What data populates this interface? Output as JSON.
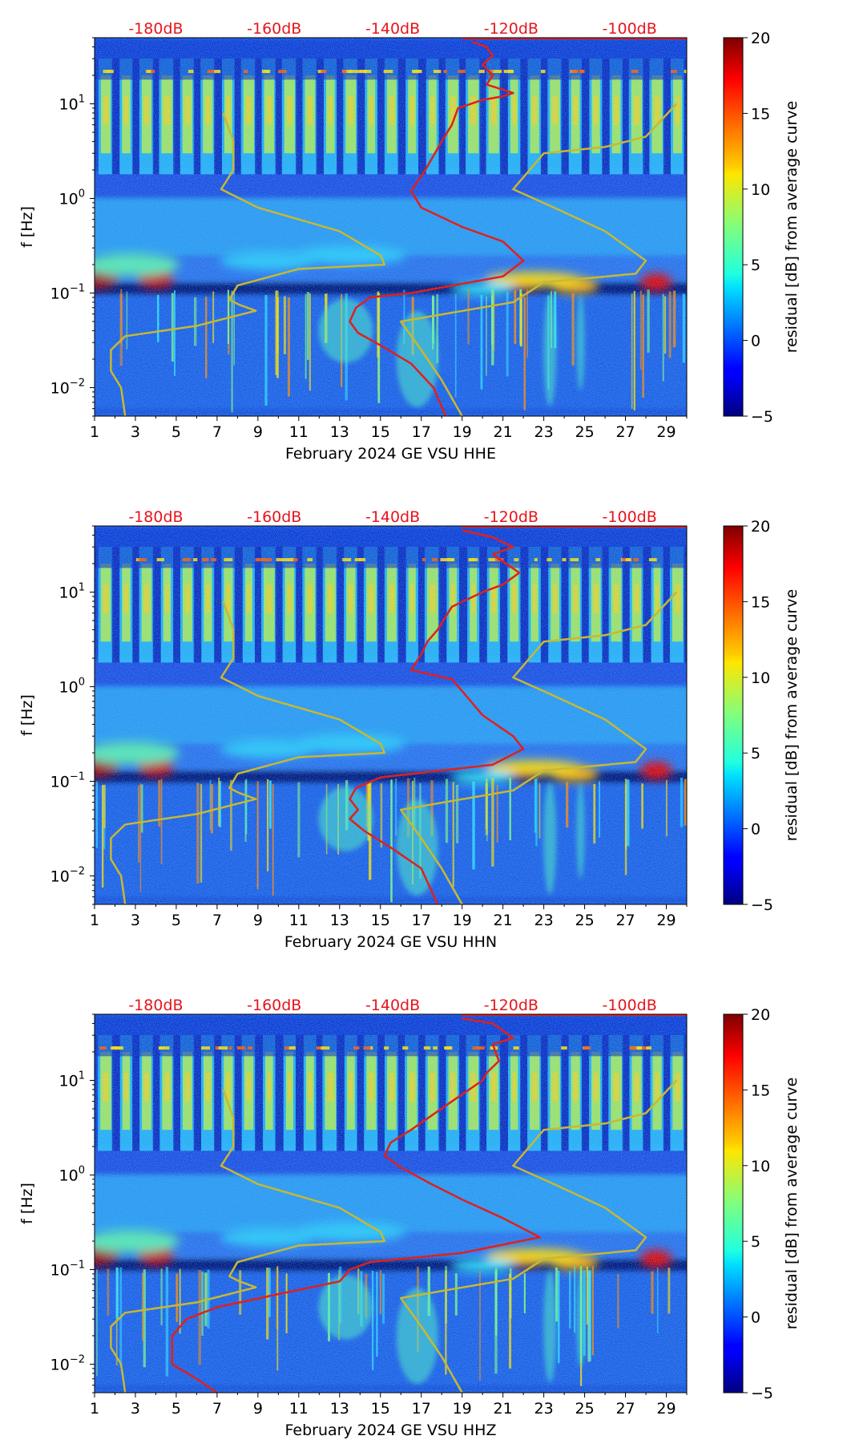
{
  "colors": {
    "db_label": "#e8141c",
    "red_curve": "#e0201c",
    "yellow_curve": "#c8b832",
    "axis": "#000000"
  },
  "chart_data": [
    {
      "type": "heatmap",
      "panel": "HHE",
      "xlabel": "February 2024 GE VSU  HHE",
      "ylabel": "f [Hz]",
      "x_ticks": [
        "1",
        "3",
        "5",
        "7",
        "9",
        "11",
        "13",
        "15",
        "17",
        "19",
        "21",
        "23",
        "25",
        "27",
        "29"
      ],
      "xlim": [
        1,
        30
      ],
      "ylim_hz": [
        0.005,
        50
      ],
      "y_ticks": [
        "10^-2",
        "10^-1",
        "10^0",
        "10^1"
      ],
      "y_tick_base": "10",
      "y_tick_exponents": [
        "−2",
        "−1",
        "0",
        "1"
      ],
      "top_labels": [
        "-180dB",
        "-160dB",
        "-140dB",
        "-120dB",
        "-100dB"
      ],
      "top_label_day_positions": [
        4,
        9.8,
        15.6,
        21.4,
        27.2
      ],
      "colorbar": {
        "label": "residual [dB] from average curve",
        "min": -5,
        "max": 20,
        "ticks": [
          "20",
          "15",
          "10",
          "5",
          "0",
          "−5"
        ]
      },
      "red_curve": [
        [
          19.5,
          45
        ],
        [
          20.2,
          40
        ],
        [
          20.5,
          32
        ],
        [
          20,
          26
        ],
        [
          20.5,
          20
        ],
        [
          20.2,
          16
        ],
        [
          21.5,
          13
        ],
        [
          21,
          12
        ],
        [
          20,
          11
        ],
        [
          18.8,
          9
        ],
        [
          18.5,
          6
        ],
        [
          18,
          4
        ],
        [
          17.2,
          2
        ],
        [
          16.5,
          1.2
        ],
        [
          17,
          0.8
        ],
        [
          19,
          0.5
        ],
        [
          21,
          0.35
        ],
        [
          22,
          0.22
        ],
        [
          21,
          0.15
        ],
        [
          16.5,
          0.1
        ],
        [
          14.5,
          0.09
        ],
        [
          13.8,
          0.07
        ],
        [
          13.5,
          0.05
        ],
        [
          13.9,
          0.038
        ],
        [
          15,
          0.028
        ],
        [
          16.5,
          0.018
        ],
        [
          17.6,
          0.01
        ],
        [
          18.2,
          0.005
        ]
      ],
      "yellow_curves": [
        [
          [
            7.3,
            8
          ],
          [
            7.8,
            4
          ],
          [
            7.8,
            2
          ],
          [
            7.2,
            1.25
          ],
          [
            9,
            0.8
          ],
          [
            13,
            0.45
          ],
          [
            15,
            0.25
          ],
          [
            15.2,
            0.2
          ],
          [
            11,
            0.18
          ],
          [
            8,
            0.12
          ],
          [
            7.6,
            0.085
          ],
          [
            8.1,
            0.075
          ],
          [
            8.9,
            0.065
          ],
          [
            6,
            0.045
          ],
          [
            2.5,
            0.035
          ],
          [
            1.8,
            0.025
          ],
          [
            1.8,
            0.015
          ],
          [
            2.3,
            0.01
          ],
          [
            2.5,
            0.005
          ]
        ],
        [
          [
            29.5,
            10
          ],
          [
            28,
            4.5
          ],
          [
            26,
            3.5
          ],
          [
            23,
            3
          ],
          [
            21.5,
            1.25
          ],
          [
            23.5,
            0.8
          ],
          [
            26,
            0.45
          ],
          [
            28,
            0.22
          ],
          [
            27.5,
            0.16
          ],
          [
            23,
            0.13
          ],
          [
            21.5,
            0.08
          ],
          [
            16,
            0.05
          ],
          [
            17,
            0.025
          ],
          [
            18,
            0.012
          ],
          [
            19,
            0.005
          ]
        ]
      ]
    },
    {
      "type": "heatmap",
      "panel": "HHN",
      "xlabel": "February 2024 GE VSU  HHN",
      "ylabel": "f [Hz]",
      "x_ticks": [
        "1",
        "3",
        "5",
        "7",
        "9",
        "11",
        "13",
        "15",
        "17",
        "19",
        "21",
        "23",
        "25",
        "27",
        "29"
      ],
      "xlim": [
        1,
        30
      ],
      "ylim_hz": [
        0.005,
        50
      ],
      "y_ticks": [
        "10^-2",
        "10^-1",
        "10^0",
        "10^1"
      ],
      "y_tick_base": "10",
      "y_tick_exponents": [
        "−2",
        "−1",
        "0",
        "1"
      ],
      "top_labels": [
        "-180dB",
        "-160dB",
        "-140dB",
        "-120dB",
        "-100dB"
      ],
      "top_label_day_positions": [
        4,
        9.8,
        15.6,
        21.4,
        27.2
      ],
      "colorbar": {
        "label": "residual [dB] from average curve",
        "min": -5,
        "max": 20,
        "ticks": [
          "20",
          "15",
          "10",
          "5",
          "0",
          "−5"
        ]
      },
      "red_curve": [
        [
          19,
          45
        ],
        [
          20.5,
          38
        ],
        [
          21.5,
          30
        ],
        [
          20.5,
          25
        ],
        [
          21.8,
          16
        ],
        [
          21,
          12
        ],
        [
          20,
          10
        ],
        [
          18.5,
          7
        ],
        [
          17.8,
          4
        ],
        [
          17.3,
          3
        ],
        [
          17,
          2.2
        ],
        [
          16.5,
          1.5
        ],
        [
          18.5,
          1.2
        ],
        [
          19.2,
          0.8
        ],
        [
          20,
          0.5
        ],
        [
          21.5,
          0.3
        ],
        [
          22,
          0.22
        ],
        [
          20.5,
          0.15
        ],
        [
          15,
          0.11
        ],
        [
          13.8,
          0.085
        ],
        [
          13.5,
          0.065
        ],
        [
          13.9,
          0.05
        ],
        [
          13.5,
          0.04
        ],
        [
          14.2,
          0.03
        ],
        [
          15.5,
          0.02
        ],
        [
          17,
          0.012
        ],
        [
          17.8,
          0.005
        ]
      ],
      "yellow_curves": [
        [
          [
            7.3,
            8
          ],
          [
            7.8,
            4
          ],
          [
            7.8,
            2
          ],
          [
            7.2,
            1.25
          ],
          [
            9,
            0.8
          ],
          [
            13,
            0.45
          ],
          [
            15,
            0.25
          ],
          [
            15.2,
            0.2
          ],
          [
            11,
            0.18
          ],
          [
            8,
            0.12
          ],
          [
            7.6,
            0.085
          ],
          [
            8.1,
            0.075
          ],
          [
            8.9,
            0.065
          ],
          [
            6,
            0.045
          ],
          [
            2.5,
            0.035
          ],
          [
            1.8,
            0.025
          ],
          [
            1.8,
            0.015
          ],
          [
            2.3,
            0.01
          ],
          [
            2.5,
            0.005
          ]
        ],
        [
          [
            29.5,
            10
          ],
          [
            28,
            4.5
          ],
          [
            26,
            3.5
          ],
          [
            23,
            3
          ],
          [
            21.5,
            1.25
          ],
          [
            23.5,
            0.8
          ],
          [
            26,
            0.45
          ],
          [
            28,
            0.22
          ],
          [
            27.5,
            0.16
          ],
          [
            23,
            0.13
          ],
          [
            21.5,
            0.08
          ],
          [
            16,
            0.05
          ],
          [
            17,
            0.025
          ],
          [
            18,
            0.012
          ],
          [
            19,
            0.005
          ]
        ]
      ]
    },
    {
      "type": "heatmap",
      "panel": "HHZ",
      "xlabel": "February 2024 GE VSU  HHZ",
      "ylabel": "f [Hz]",
      "x_ticks": [
        "1",
        "3",
        "5",
        "7",
        "9",
        "11",
        "13",
        "15",
        "17",
        "19",
        "21",
        "23",
        "25",
        "27",
        "29"
      ],
      "xlim": [
        1,
        30
      ],
      "ylim_hz": [
        0.005,
        50
      ],
      "y_ticks": [
        "10^-2",
        "10^-1",
        "10^0",
        "10^1"
      ],
      "y_tick_base": "10",
      "y_tick_exponents": [
        "−2",
        "−1",
        "0",
        "1"
      ],
      "top_labels": [
        "-180dB",
        "-160dB",
        "-140dB",
        "-120dB",
        "-100dB"
      ],
      "top_label_day_positions": [
        4,
        9.8,
        15.6,
        21.4,
        27.2
      ],
      "colorbar": {
        "label": "residual [dB] from average curve",
        "min": -5,
        "max": 20,
        "ticks": [
          "20",
          "15",
          "10",
          "5",
          "0",
          "−5"
        ]
      },
      "red_curve": [
        [
          19,
          45
        ],
        [
          20.5,
          40
        ],
        [
          21.5,
          28
        ],
        [
          20.5,
          24
        ],
        [
          20.8,
          16
        ],
        [
          20.2,
          12
        ],
        [
          20,
          10
        ],
        [
          18.5,
          6
        ],
        [
          16.5,
          3
        ],
        [
          15.5,
          2.2
        ],
        [
          15.2,
          1.6
        ],
        [
          16,
          1.2
        ],
        [
          17.5,
          0.8
        ],
        [
          19,
          0.55
        ],
        [
          21,
          0.35
        ],
        [
          22.8,
          0.22
        ],
        [
          19,
          0.15
        ],
        [
          14.5,
          0.12
        ],
        [
          13.5,
          0.1
        ],
        [
          13,
          0.075
        ],
        [
          10,
          0.055
        ],
        [
          7,
          0.04
        ],
        [
          5.5,
          0.03
        ],
        [
          4.8,
          0.02
        ],
        [
          4.8,
          0.01
        ],
        [
          6,
          0.007
        ],
        [
          7,
          0.005
        ]
      ],
      "yellow_curves": [
        [
          [
            7.3,
            8
          ],
          [
            7.8,
            4
          ],
          [
            7.8,
            2
          ],
          [
            7.2,
            1.25
          ],
          [
            9,
            0.8
          ],
          [
            13,
            0.45
          ],
          [
            15,
            0.25
          ],
          [
            15.2,
            0.2
          ],
          [
            11,
            0.18
          ],
          [
            8,
            0.12
          ],
          [
            7.6,
            0.085
          ],
          [
            8.1,
            0.075
          ],
          [
            8.9,
            0.065
          ],
          [
            6,
            0.045
          ],
          [
            2.5,
            0.035
          ],
          [
            1.8,
            0.025
          ],
          [
            1.8,
            0.015
          ],
          [
            2.3,
            0.01
          ],
          [
            2.5,
            0.005
          ]
        ],
        [
          [
            29.5,
            10
          ],
          [
            28,
            4.5
          ],
          [
            26,
            3.5
          ],
          [
            23,
            3
          ],
          [
            21.5,
            1.25
          ],
          [
            23.5,
            0.8
          ],
          [
            26,
            0.45
          ],
          [
            28,
            0.22
          ],
          [
            27.5,
            0.16
          ],
          [
            23,
            0.13
          ],
          [
            21.5,
            0.08
          ],
          [
            16,
            0.05
          ],
          [
            17,
            0.025
          ],
          [
            18,
            0.012
          ],
          [
            19,
            0.005
          ]
        ]
      ]
    }
  ]
}
